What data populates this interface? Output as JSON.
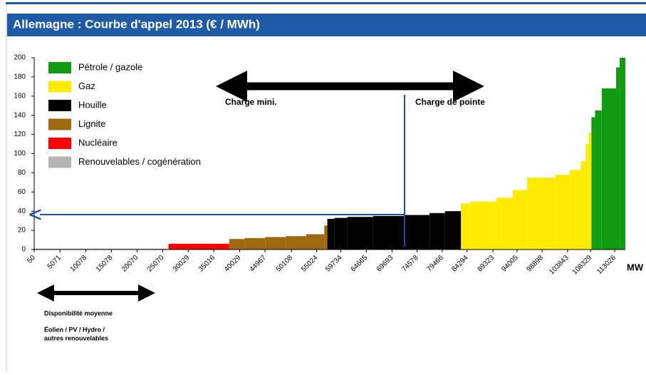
{
  "chart_data": {
    "type": "step-area",
    "title": "Allemagne : Courbe d'appel 2013 (€ / MWh)",
    "xlabel": "MW",
    "xlim": [
      50,
      115100
    ],
    "ylim": [
      0,
      200
    ],
    "xticks": [
      50,
      5071,
      10078,
      15078,
      20070,
      25070,
      30029,
      35016,
      40029,
      44967,
      50108,
      55024,
      59734,
      64665,
      69693,
      74578,
      79466,
      84294,
      89323,
      94005,
      98898,
      103843,
      108329,
      113026
    ],
    "yticks": [
      0,
      20,
      40,
      60,
      80,
      100,
      120,
      140,
      160,
      180,
      200
    ],
    "series": [
      {
        "name": "Pétrole / gazole",
        "color": "#109c10",
        "bins": [
          108500,
          109200,
          110500,
          113300,
          114000,
          115100
        ],
        "values": [
          138,
          145,
          168,
          190,
          200
        ]
      },
      {
        "name": "Gaz",
        "color": "#ffeb00",
        "bins": [
          83100,
          84900,
          90000,
          93200,
          96000,
          101500,
          104300,
          106400,
          107400,
          108000,
          108500
        ],
        "values": [
          48,
          50,
          54,
          62,
          75,
          78,
          83,
          92,
          110,
          122
        ]
      },
      {
        "name": "Houille",
        "color": "#000000",
        "bins": [
          57100,
          58500,
          61000,
          66000,
          72000,
          77000,
          80000,
          83100
        ],
        "values": [
          32,
          33,
          34,
          35,
          36,
          38,
          40
        ]
      },
      {
        "name": "Lignite",
        "color": "#9c6a10",
        "bins": [
          38000,
          41000,
          45000,
          49000,
          53000,
          56500,
          57100
        ],
        "values": [
          11,
          12,
          13,
          14,
          16,
          25
        ]
      },
      {
        "name": "Nucléaire",
        "color": "#ff0000",
        "bins": [
          26200,
          38000
        ],
        "values": [
          6
        ]
      },
      {
        "name": "Renouvelables / cogénération",
        "color": "#b4b4b4",
        "bins": [
          50,
          26200
        ],
        "values": [
          1
        ]
      }
    ],
    "annotations": {
      "charge_mini": "Charge mini.",
      "charge_pointe": "Charge de pointe",
      "dispo": "Disponibilité moyenne",
      "eolien_1": "Éolien / PV / Hydro /",
      "eolien_2": "autres renouvelables"
    }
  }
}
